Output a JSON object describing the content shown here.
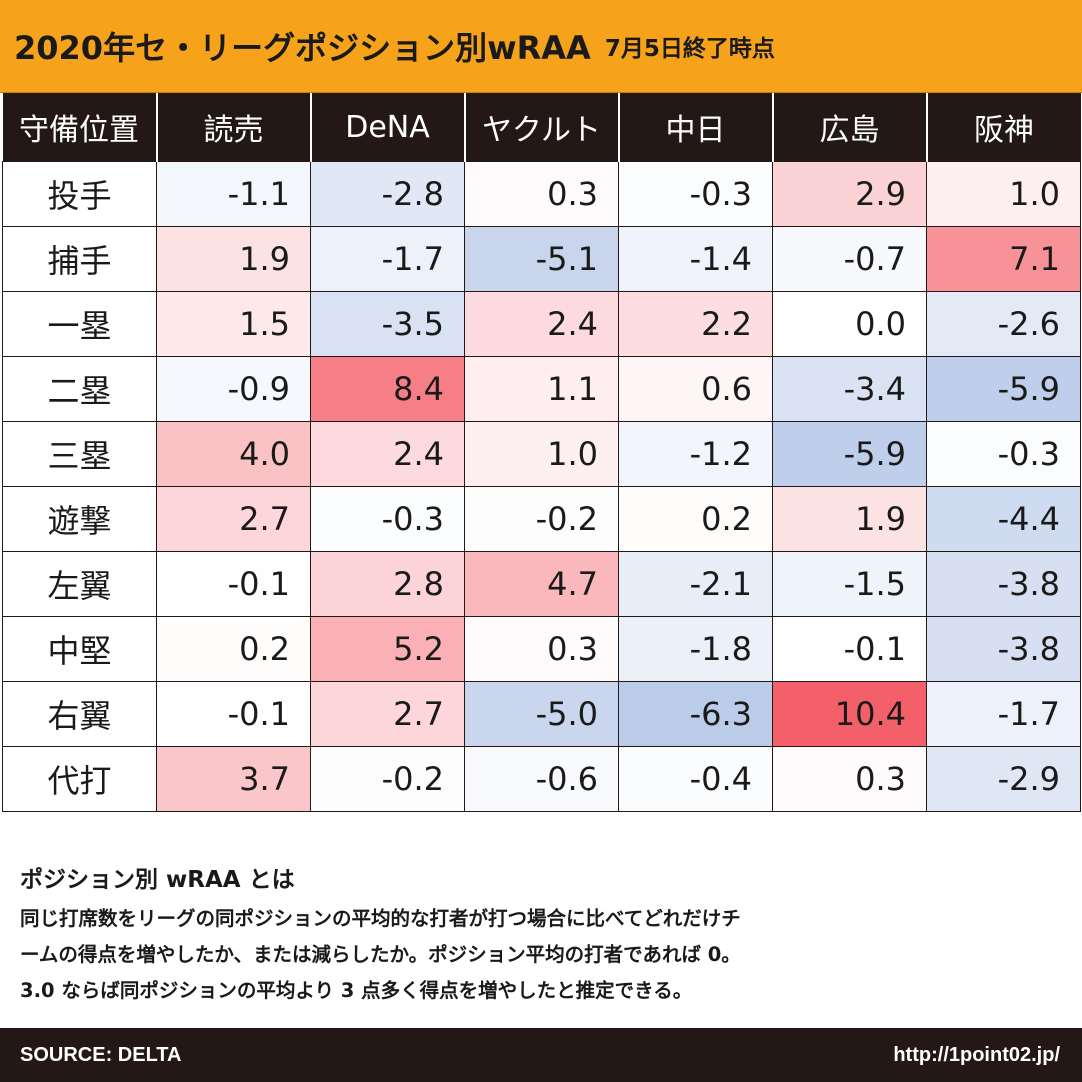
{
  "header": {
    "title": "2020年セ・リーグポジション別wRAA",
    "subtitle": "7月5日終了時点"
  },
  "chart_data": {
    "type": "table",
    "corner_label": "守備位置",
    "columns": [
      "読売",
      "DeNA",
      "ヤクルト",
      "中日",
      "広島",
      "阪神"
    ],
    "rows": [
      {
        "label": "投手",
        "values": [
          -1.1,
          -2.8,
          0.3,
          -0.3,
          2.9,
          1.0
        ]
      },
      {
        "label": "捕手",
        "values": [
          1.9,
          -1.7,
          -5.1,
          -1.4,
          -0.7,
          7.1
        ]
      },
      {
        "label": "一塁",
        "values": [
          1.5,
          -3.5,
          2.4,
          2.2,
          0.0,
          -2.6
        ]
      },
      {
        "label": "二塁",
        "values": [
          -0.9,
          8.4,
          1.1,
          0.6,
          -3.4,
          -5.9
        ]
      },
      {
        "label": "三塁",
        "values": [
          4.0,
          2.4,
          1.0,
          -1.2,
          -5.9,
          -0.3
        ]
      },
      {
        "label": "遊撃",
        "values": [
          2.7,
          -0.3,
          -0.2,
          0.2,
          1.9,
          -4.4
        ]
      },
      {
        "label": "左翼",
        "values": [
          -0.1,
          2.8,
          4.7,
          -2.1,
          -1.5,
          -3.8
        ]
      },
      {
        "label": "中堅",
        "values": [
          0.2,
          5.2,
          0.3,
          -1.8,
          -0.1,
          -3.8
        ]
      },
      {
        "label": "右翼",
        "values": [
          -0.1,
          2.7,
          -5.0,
          -6.3,
          10.4,
          -1.7
        ]
      },
      {
        "label": "代打",
        "values": [
          3.7,
          -0.2,
          -0.6,
          -0.4,
          0.3,
          -2.9
        ]
      }
    ],
    "color_scale": {
      "negative": "#8eaadb",
      "neutral": "#ffffff",
      "positive": "#f4606a"
    }
  },
  "note": {
    "title": "ポジション別 wRAA とは",
    "lines": [
      "同じ打席数をリーグの同ポジションの平均的な打者が打つ場合に比べてどれだけチ",
      "ームの得点を増やしたか、または減らしたか。ポジション平均の打者であれば 0。",
      "3.0 ならば同ポジションの平均より 3 点多く得点を増やしたと推定できる。"
    ]
  },
  "footer": {
    "source": "SOURCE: DELTA",
    "url": "http://1point02.jp/"
  }
}
